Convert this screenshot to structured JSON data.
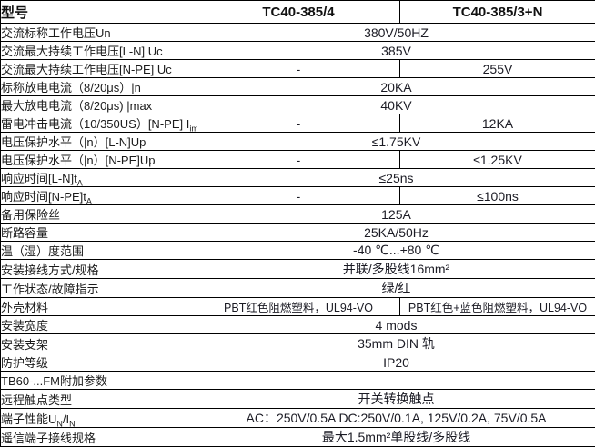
{
  "table": {
    "header": {
      "col1": "型号",
      "col2": "TC40-385/4",
      "col3": "TC40-385/3+N"
    },
    "rows": [
      {
        "label_parts": [
          {
            "t": "交流标称工作电压Un"
          }
        ],
        "cells": [
          {
            "text": "380V/50HZ",
            "colspan": 2
          }
        ]
      },
      {
        "label_parts": [
          {
            "t": "交流最大持续工作电压[L-N] Uc"
          }
        ],
        "cells": [
          {
            "text": "385V",
            "colspan": 2
          }
        ]
      },
      {
        "label_parts": [
          {
            "t": "交流最大持续工作电压[N-PE] Uc"
          }
        ],
        "cells": [
          {
            "text": "-"
          },
          {
            "text": "255V"
          }
        ]
      },
      {
        "label_parts": [
          {
            "t": "标称放电电流（8/20μs）|n"
          }
        ],
        "cells": [
          {
            "text": "20KA",
            "colspan": 2
          }
        ]
      },
      {
        "label_parts": [
          {
            "t": "最大放电电流（8/20μs) |max"
          }
        ],
        "cells": [
          {
            "text": "40KV",
            "colspan": 2
          }
        ]
      },
      {
        "label_parts": [
          {
            "t": "雷电冲击电流（10/350US）[N-PE] I"
          },
          {
            "t": "imp",
            "sub": true
          }
        ],
        "cells": [
          {
            "text": "-"
          },
          {
            "text": "12KA"
          }
        ]
      },
      {
        "label_parts": [
          {
            "t": "电压保护水平（|n）[L-N]Up"
          }
        ],
        "cells": [
          {
            "text": "≤1.75KV",
            "colspan": 2
          }
        ]
      },
      {
        "label_parts": [
          {
            "t": "电压保护水平（|n）[N-PE]Up"
          }
        ],
        "cells": [
          {
            "text": "-"
          },
          {
            "text": "≤1.25KV"
          }
        ]
      },
      {
        "label_parts": [
          {
            "t": "响应时间[L-N]t"
          },
          {
            "t": "A",
            "sub": true
          }
        ],
        "cells": [
          {
            "text": "≤25ns",
            "colspan": 2
          }
        ]
      },
      {
        "label_parts": [
          {
            "t": "响应时间[N-PE]t"
          },
          {
            "t": "A",
            "sub": true
          }
        ],
        "cells": [
          {
            "text": "-"
          },
          {
            "text": "≤100ns"
          }
        ]
      },
      {
        "label_parts": [
          {
            "t": "备用保险丝"
          }
        ],
        "cells": [
          {
            "text": "125A",
            "colspan": 2
          }
        ]
      },
      {
        "label_parts": [
          {
            "t": "断路容量"
          }
        ],
        "cells": [
          {
            "text": "25KA/50Hz",
            "colspan": 2
          }
        ]
      },
      {
        "label_parts": [
          {
            "t": "温（湿）度范围"
          }
        ],
        "cells": [
          {
            "text": "-40 ℃...+80 ℃",
            "colspan": 2
          }
        ]
      },
      {
        "label_parts": [
          {
            "t": "安装接线方式/规格"
          }
        ],
        "cells": [
          {
            "text": "并联/多股线16mm²",
            "colspan": 2
          }
        ]
      },
      {
        "label_parts": [
          {
            "t": "工作状态/故障指示"
          }
        ],
        "cells": [
          {
            "text": "绿/红",
            "colspan": 2
          }
        ]
      },
      {
        "label_parts": [
          {
            "t": "外壳材料"
          }
        ],
        "cells": [
          {
            "text": "PBT红色阻燃塑料，UL94-VO",
            "small": true
          },
          {
            "text": "PBT红色+蓝色阻燃塑料，UL94-VO",
            "small": true
          }
        ]
      },
      {
        "label_parts": [
          {
            "t": "安装宽度"
          }
        ],
        "cells": [
          {
            "text": "4 mods",
            "colspan": 2
          }
        ]
      },
      {
        "label_parts": [
          {
            "t": "安装支架"
          }
        ],
        "cells": [
          {
            "text": "35mm DIN 轨",
            "colspan": 2
          }
        ]
      },
      {
        "label_parts": [
          {
            "t": "防护等级"
          }
        ],
        "cells": [
          {
            "text": "IP20",
            "colspan": 2
          }
        ]
      },
      {
        "label_parts": [
          {
            "t": "TB60-...FM附加参数"
          }
        ],
        "cells": [
          {
            "text": "",
            "colspan": 2
          }
        ]
      },
      {
        "label_parts": [
          {
            "t": "远程触点类型"
          }
        ],
        "cells": [
          {
            "text": "开关转换触点",
            "colspan": 2
          }
        ]
      },
      {
        "label_parts": [
          {
            "t": "端子性能U"
          },
          {
            "t": "N",
            "sub": true
          },
          {
            "t": "/I"
          },
          {
            "t": "N",
            "sub": true
          }
        ],
        "cells": [
          {
            "text": "AC：250V/0.5A  DC:250V/0.1A, 125V/0.2A, 75V/0.5A",
            "colspan": 2
          }
        ]
      },
      {
        "label_parts": [
          {
            "t": "遥信端子接线规格"
          }
        ],
        "cells": [
          {
            "text": "最大1.5mm²单股线/多股线",
            "colspan": 2
          }
        ]
      }
    ]
  }
}
